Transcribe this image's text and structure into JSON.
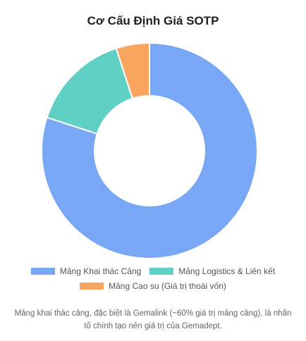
{
  "chart_data": {
    "type": "doughnut",
    "title": "Cơ Cấu Định Giá SOTP",
    "categories": [
      "Mảng Khai thác Cảng",
      "Mảng Logistics & Liên kết",
      "Mảng Cao su (Giá trị thoái vốn)"
    ],
    "values": [
      80,
      15,
      5
    ],
    "colors": [
      "#78a8f5",
      "#5fd0c3",
      "#f8a55f"
    ],
    "legend_position": "bottom"
  },
  "caption": "Mảng khai thác cảng, đặc biệt là Gemalink (~60% giá trị mảng cảng), là nhân tố chính tạo nên giá trị của Gemadept."
}
